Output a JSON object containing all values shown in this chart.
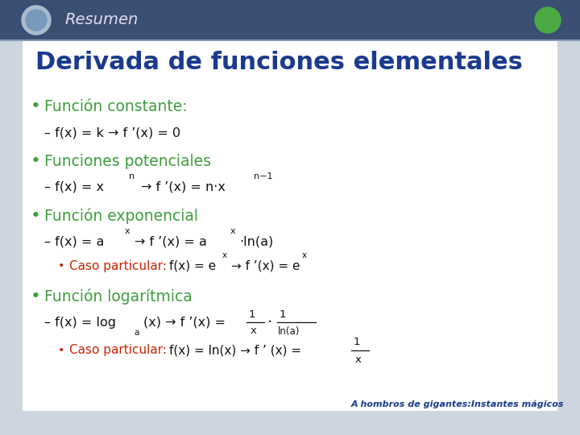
{
  "bg_color": "#cdd5e0",
  "content_bg": "#f0f3f8",
  "header_dark_bg": "#3a5080",
  "header_text": "Resumen",
  "title": "Derivada de funciones elementales",
  "title_color": "#1a3a8f",
  "title_fontsize": 22,
  "green_color": "#3d9e3d",
  "dark_text": "#111111",
  "red_color": "#cc2200",
  "blue_footer": "#1a3a8f",
  "footer_text": "A hombros de gigantes:Instantes mágicos",
  "fs_bullet": 13.5,
  "fs_dash": 11.5,
  "fs_sub": 11.0,
  "fs_sup": 8.0
}
